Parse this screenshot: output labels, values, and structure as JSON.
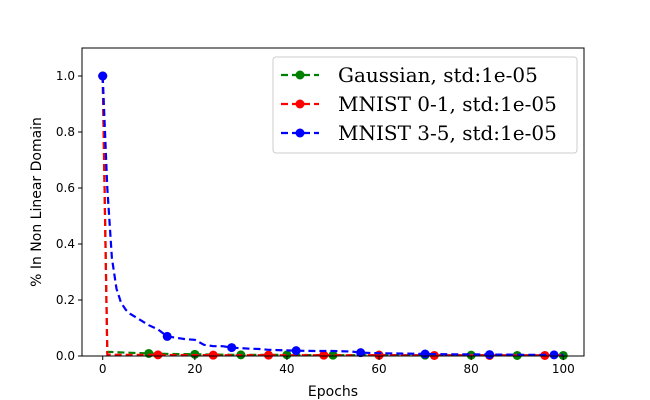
{
  "chart_data": {
    "type": "line",
    "title": "",
    "xlabel": "Epochs",
    "ylabel": "% In Non Linear Domain",
    "xlim": [
      -4.5,
      104.5
    ],
    "ylim": [
      0,
      1.1
    ],
    "xticks": [
      0,
      20,
      40,
      60,
      80,
      100
    ],
    "yticks": [
      0.0,
      0.2,
      0.4,
      0.6,
      0.8,
      1.0
    ],
    "grid": false,
    "legend_position": "top-right",
    "series": [
      {
        "name": "Gaussian, std:1e-05",
        "color": "#008000",
        "line_style": "dashed",
        "x": [
          0,
          1,
          5,
          10,
          15,
          20,
          25,
          30,
          40,
          50,
          60,
          70,
          80,
          90,
          100
        ],
        "y": [
          1.0,
          0.015,
          0.012,
          0.009,
          0.007,
          0.006,
          0.005,
          0.004,
          0.004,
          0.003,
          0.003,
          0.003,
          0.003,
          0.002,
          0.002
        ],
        "marker_x": [
          0,
          10,
          20,
          30,
          40,
          50,
          60,
          70,
          80,
          90,
          100
        ],
        "marker_y": [
          1.0,
          0.009,
          0.006,
          0.004,
          0.004,
          0.003,
          0.003,
          0.003,
          0.003,
          0.002,
          0.002
        ]
      },
      {
        "name": "MNIST 0-1, std:1e-05",
        "color": "#ff0000",
        "line_style": "dashed",
        "x": [
          0,
          1,
          5,
          12,
          24,
          36,
          48,
          60,
          72,
          84,
          96,
          100
        ],
        "y": [
          1.0,
          0.005,
          0.004,
          0.004,
          0.003,
          0.003,
          0.003,
          0.003,
          0.002,
          0.002,
          0.002,
          0.002
        ],
        "marker_x": [
          0,
          12,
          24,
          36,
          48,
          60,
          72,
          84,
          96
        ],
        "marker_y": [
          1.0,
          0.004,
          0.003,
          0.003,
          0.003,
          0.003,
          0.002,
          0.002,
          0.002
        ]
      },
      {
        "name": "MNIST 3-5, std:1e-05",
        "color": "#0000ff",
        "line_style": "dashed",
        "x": [
          0,
          1,
          2,
          3,
          4,
          5,
          6,
          8,
          10,
          12,
          14,
          16,
          18,
          20,
          22,
          24,
          26,
          28,
          30,
          32,
          34,
          36,
          38,
          40,
          42,
          46,
          50,
          54,
          56,
          60,
          64,
          68,
          70,
          76,
          80,
          84,
          88,
          92,
          96,
          98,
          100
        ],
        "y": [
          1.0,
          0.6,
          0.35,
          0.24,
          0.19,
          0.165,
          0.15,
          0.13,
          0.11,
          0.095,
          0.07,
          0.065,
          0.06,
          0.058,
          0.04,
          0.035,
          0.035,
          0.03,
          0.028,
          0.026,
          0.025,
          0.022,
          0.021,
          0.02,
          0.019,
          0.018,
          0.018,
          0.016,
          0.012,
          0.01,
          0.009,
          0.008,
          0.007,
          0.006,
          0.006,
          0.005,
          0.005,
          0.004,
          0.004,
          0.004,
          0.004
        ],
        "marker_x": [
          0,
          14,
          28,
          42,
          56,
          70,
          84,
          98
        ],
        "marker_y": [
          1.0,
          0.07,
          0.03,
          0.019,
          0.012,
          0.007,
          0.005,
          0.004
        ]
      }
    ]
  }
}
